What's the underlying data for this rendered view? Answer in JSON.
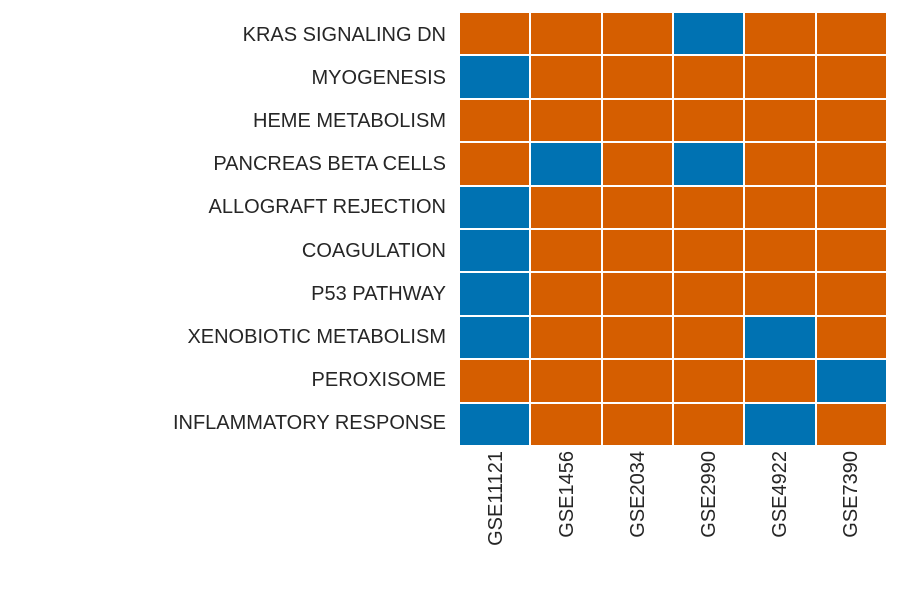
{
  "chart_data": {
    "type": "heatmap",
    "title": "",
    "rows": [
      "KRAS SIGNALING DN",
      "MYOGENESIS",
      "HEME METABOLISM",
      "PANCREAS BETA CELLS",
      "ALLOGRAFT REJECTION",
      "COAGULATION",
      "P53 PATHWAY",
      "XENOBIOTIC METABOLISM",
      "PEROXISOME",
      "INFLAMMATORY RESPONSE"
    ],
    "columns": [
      "GSE11121",
      "GSE1456",
      "GSE2034",
      "GSE2990",
      "GSE4922",
      "GSE7390"
    ],
    "values": [
      [
        1,
        1,
        1,
        0,
        1,
        1
      ],
      [
        0,
        1,
        1,
        1,
        1,
        1
      ],
      [
        1,
        1,
        1,
        1,
        1,
        1
      ],
      [
        1,
        0,
        1,
        0,
        1,
        1
      ],
      [
        0,
        1,
        1,
        1,
        1,
        1
      ],
      [
        0,
        1,
        1,
        1,
        1,
        1
      ],
      [
        0,
        1,
        1,
        1,
        1,
        1
      ],
      [
        0,
        1,
        1,
        1,
        0,
        1
      ],
      [
        1,
        1,
        1,
        1,
        1,
        0
      ],
      [
        0,
        1,
        1,
        1,
        0,
        1
      ]
    ],
    "value_colors": {
      "0": "#0072B2",
      "1": "#D55E00"
    },
    "grid_line_color": "#ffffff",
    "text_color": "#262626",
    "legend": "none",
    "grid": "on"
  }
}
